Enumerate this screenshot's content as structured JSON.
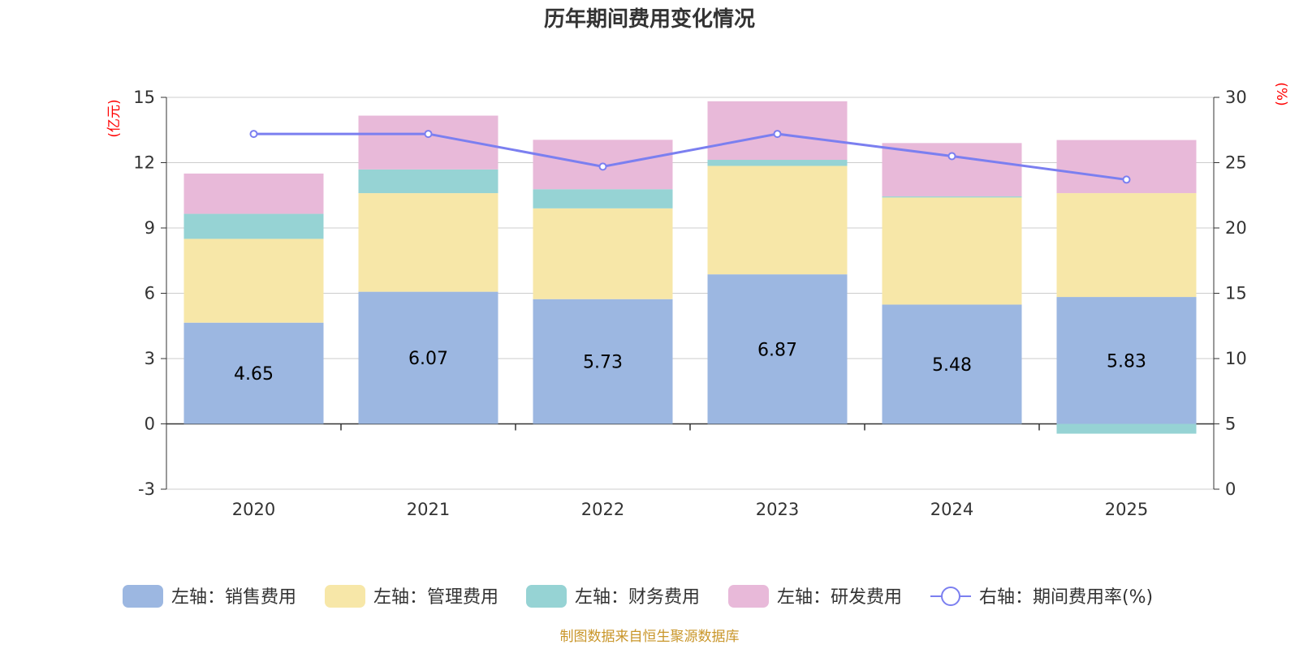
{
  "chart_data": {
    "type": "bar",
    "title": "历年期间费用变化情况",
    "categories": [
      "2020",
      "2021",
      "2022",
      "2023",
      "2024",
      "2025"
    ],
    "left_axis": {
      "unit": "(亿元)",
      "ylim": [
        -3,
        15
      ],
      "ticks": [
        -3,
        0,
        3,
        6,
        9,
        12,
        15
      ]
    },
    "right_axis": {
      "unit": "(%)",
      "ylim": [
        0,
        30
      ],
      "ticks": [
        0,
        5,
        10,
        15,
        20,
        25,
        30
      ]
    },
    "series": [
      {
        "name": "左轴：销售费用",
        "axis": "left",
        "stack": true,
        "color": "#9cb7e1",
        "values": [
          4.65,
          6.07,
          5.73,
          6.87,
          5.48,
          5.83
        ],
        "show_labels": true
      },
      {
        "name": "左轴：管理费用",
        "axis": "left",
        "stack": true,
        "color": "#f7e7a8",
        "values": [
          3.85,
          4.53,
          4.17,
          4.98,
          4.92,
          4.77
        ]
      },
      {
        "name": "左轴：财务费用",
        "axis": "left",
        "stack": true,
        "color": "#96d3d4",
        "values": [
          1.15,
          1.09,
          0.88,
          0.28,
          0.05,
          -0.45
        ]
      },
      {
        "name": "左轴：研发费用",
        "axis": "left",
        "stack": true,
        "color": "#e8b9d9",
        "values": [
          1.85,
          2.47,
          2.27,
          2.69,
          2.45,
          2.44
        ]
      },
      {
        "name": "右轴：期间费用率(%)",
        "axis": "right",
        "type": "line",
        "color": "#7b7ff0",
        "values": [
          27.2,
          27.2,
          24.7,
          27.2,
          25.5,
          23.7
        ]
      }
    ],
    "legend_position": "bottom"
  },
  "footer": {
    "source": "制图数据来自恒生聚源数据库"
  }
}
